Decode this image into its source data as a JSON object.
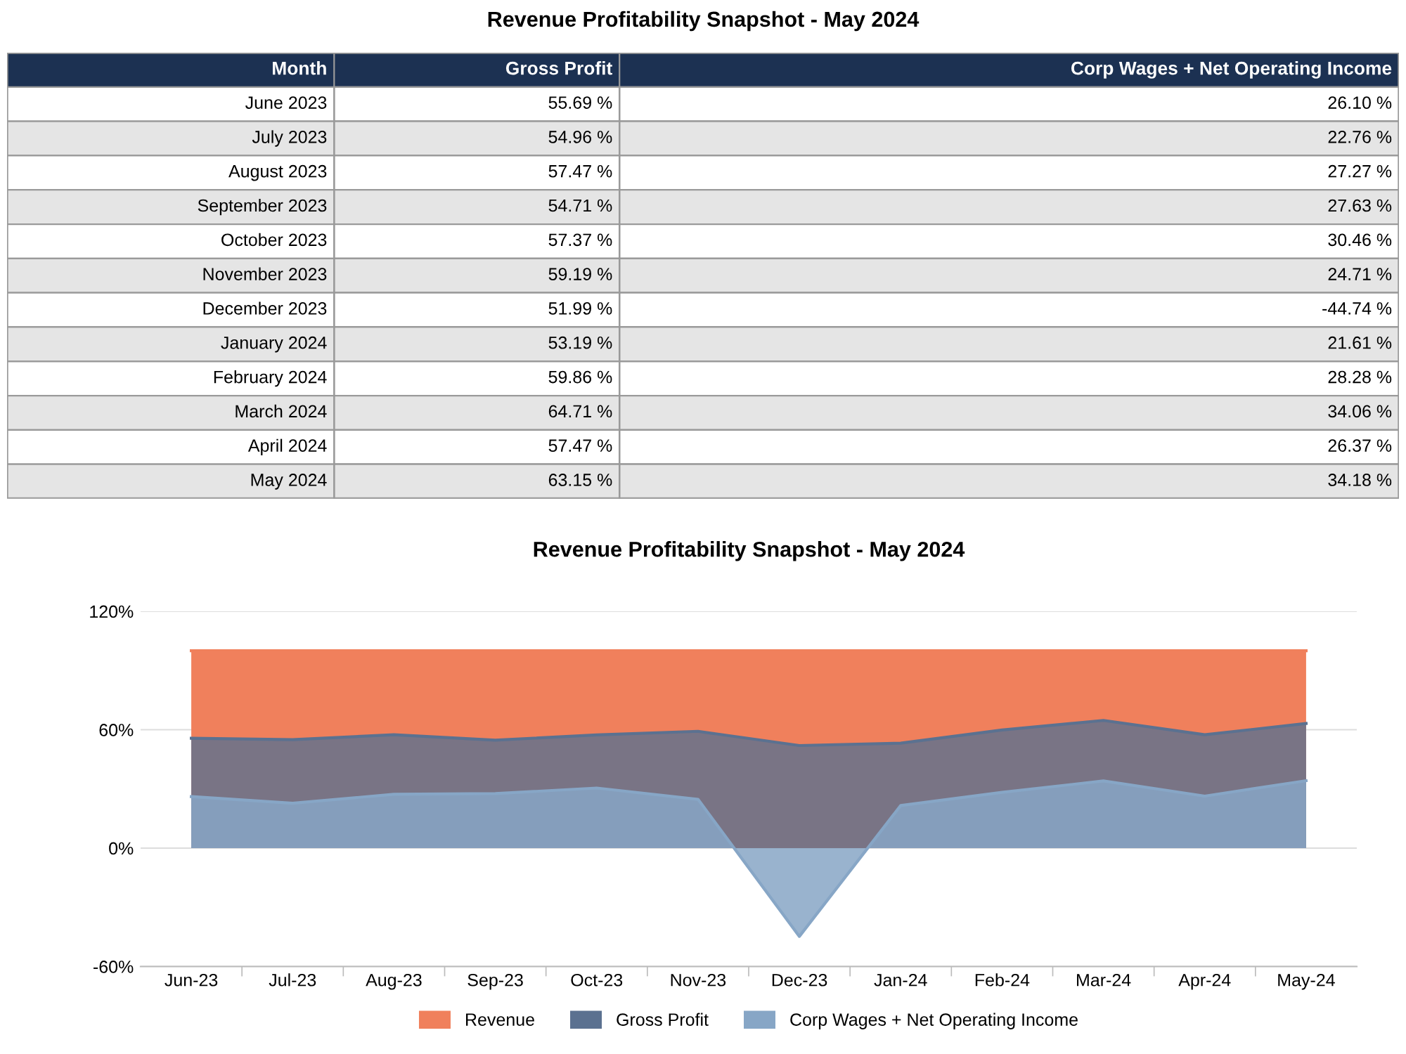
{
  "chart_data": [
    {
      "type": "other",
      "title": "Revenue Profitability Snapshot - May 2024",
      "xlabel": "Month",
      "categories": [
        "June 2023",
        "July 2023",
        "August 2023",
        "September 2023",
        "October 2023",
        "November 2023",
        "December 2023",
        "January 2024",
        "February 2024",
        "March 2024",
        "April 2024",
        "May 2024"
      ],
      "series": [
        {
          "name": "Gross Profit",
          "colors": [
            "#ffffff",
            "#e5e5e5",
            "#ffffff",
            "#e5e5e5",
            "#ffffff",
            "#e5e5e5",
            "#ffffff",
            "#e5e5e5",
            "#ffffff",
            "#e5e5e5",
            "#ffffff",
            "#e5e5e5"
          ],
          "values": [
            55.69,
            54.96,
            57.47,
            54.71,
            57.37,
            59.19,
            51.99,
            53.19,
            59.86,
            64.71,
            57.47,
            63.15
          ],
          "value_labels": [
            "55.69 %",
            "54.96 %",
            "57.47 %",
            "54.71 %",
            "57.37 %",
            "59.19 %",
            "51.99 %",
            "53.19 %",
            "59.86 %",
            "64.71 %",
            "57.47 %",
            "63.15 %"
          ]
        },
        {
          "name": "Corp Wages + Net Operating Income",
          "colors": [
            "#ffffff",
            "#e5e5e5",
            "#ffffff",
            "#e5e5e5",
            "#ffffff",
            "#e5e5e5",
            "#ffffff",
            "#e5e5e5",
            "#ffffff",
            "#e5e5e5",
            "#ffffff",
            "#e5e5e5"
          ],
          "values": [
            26.1,
            22.76,
            27.27,
            27.63,
            30.46,
            24.71,
            -44.74,
            21.61,
            28.28,
            34.06,
            26.37,
            34.18
          ],
          "value_labels": [
            "26.10 %",
            "22.76 %",
            "27.27 %",
            "27.63 %",
            "30.46 %",
            "24.71 %",
            "-44.74 %",
            "21.61 %",
            "28.28 %",
            "34.06 %",
            "26.37 %",
            "34.18 %"
          ]
        }
      ]
    },
    {
      "type": "area",
      "title": "Revenue Profitability Snapshot - May 2024",
      "categories": [
        "Jun-23",
        "Jul-23",
        "Aug-23",
        "Sep-23",
        "Oct-23",
        "Nov-23",
        "Dec-23",
        "Jan-24",
        "Feb-24",
        "Mar-24",
        "Apr-24",
        "May-24"
      ],
      "series": [
        {
          "name": "Revenue",
          "color": "#f0805c",
          "values": [
            100,
            100,
            100,
            100,
            100,
            100,
            100,
            100,
            100,
            100,
            100,
            100
          ]
        },
        {
          "name": "Gross Profit",
          "color": "#5b7190",
          "values": [
            55.69,
            54.96,
            57.47,
            54.71,
            57.37,
            59.19,
            51.99,
            53.19,
            59.86,
            64.71,
            57.47,
            63.15
          ]
        },
        {
          "name": "Corp Wages + Net Operating Income",
          "color": "#87a6c6",
          "values": [
            26.1,
            22.76,
            27.27,
            27.63,
            30.46,
            24.71,
            -44.74,
            21.61,
            28.28,
            34.06,
            26.37,
            34.18
          ]
        }
      ],
      "ylim": [
        -60,
        120
      ],
      "yticks": [
        {
          "value": -60,
          "label": "-60%"
        },
        {
          "value": 0,
          "label": "0%"
        },
        {
          "value": 60,
          "label": "60%"
        },
        {
          "value": 120,
          "label": "120%"
        }
      ],
      "grid": "y",
      "legend": "bottom"
    }
  ]
}
